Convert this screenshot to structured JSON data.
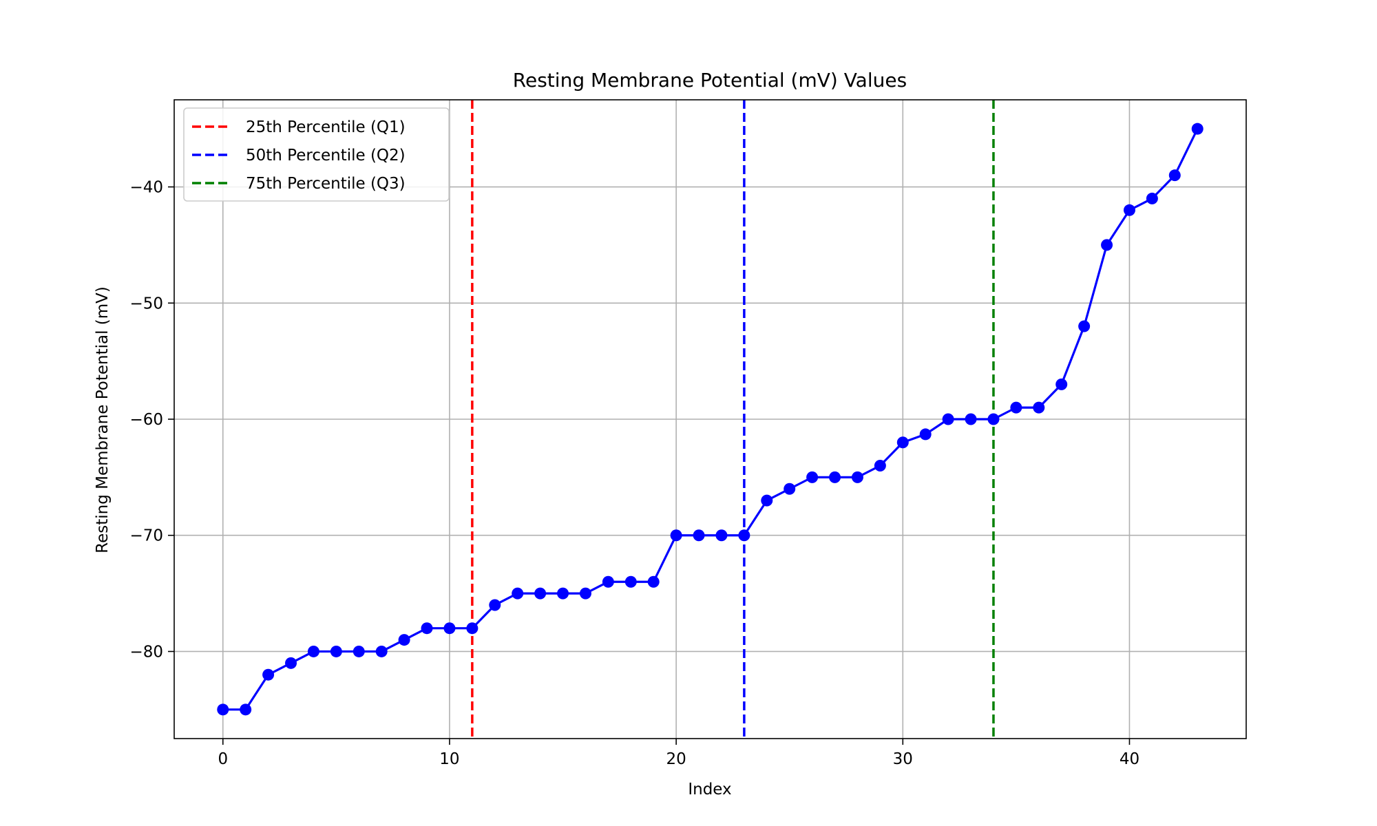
{
  "chart_data": {
    "type": "line",
    "title": "Resting Membrane Potential (mV) Values",
    "xlabel": "Index",
    "ylabel": "Resting Membrane Potential (mV)",
    "xlim": [
      -2.15,
      45.15
    ],
    "ylim": [
      -87.5,
      -32.5
    ],
    "xticks": [
      0,
      10,
      20,
      30,
      40
    ],
    "xtick_labels": [
      "0",
      "10",
      "20",
      "30",
      "40"
    ],
    "yticks": [
      -80,
      -70,
      -60,
      -50,
      -40
    ],
    "ytick_labels": [
      "−80",
      "−70",
      "−60",
      "−50",
      "−40"
    ],
    "grid": true,
    "legend_position": "top-left",
    "series": [
      {
        "color": "#0000ff",
        "marker": "circle",
        "x": [
          0,
          1,
          2,
          3,
          4,
          5,
          6,
          7,
          8,
          9,
          10,
          11,
          12,
          13,
          14,
          15,
          16,
          17,
          18,
          19,
          20,
          21,
          22,
          23,
          24,
          25,
          26,
          27,
          28,
          29,
          30,
          31,
          32,
          33,
          34,
          35,
          36,
          37,
          38,
          39,
          40,
          41,
          42,
          43
        ],
        "values": [
          -85,
          -85,
          -82,
          -81,
          -80,
          -80,
          -80,
          -80,
          -79,
          -78,
          -78,
          -78,
          -76,
          -75,
          -75,
          -75,
          -75,
          -74,
          -74,
          -74,
          -70,
          -70,
          -70,
          -70,
          -67,
          -66,
          -65,
          -65,
          -65,
          -64,
          -62,
          -61.3,
          -60,
          -60,
          -60,
          -59,
          -59,
          -57,
          -52,
          -45,
          -42,
          -41,
          -39,
          -35
        ]
      }
    ],
    "vlines": [
      {
        "name": "25th Percentile (Q1)",
        "x": 11,
        "color": "#ff0000",
        "style": "dashed"
      },
      {
        "name": "50th Percentile (Q2)",
        "x": 23,
        "color": "#0000ff",
        "style": "dashed"
      },
      {
        "name": "75th Percentile (Q3)",
        "x": 34,
        "color": "#008000",
        "style": "dashed"
      }
    ]
  }
}
